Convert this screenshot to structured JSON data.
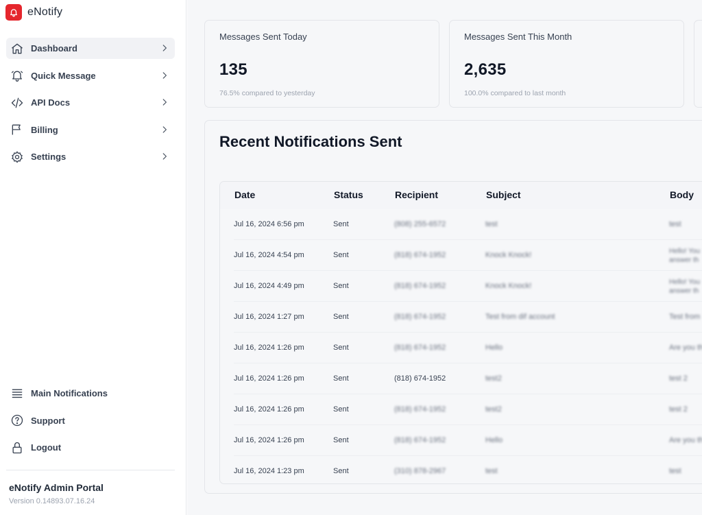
{
  "app": {
    "name": "eNotify"
  },
  "sidebar": {
    "items": [
      {
        "label": "Dashboard",
        "icon": "home-icon",
        "active": true
      },
      {
        "label": "Quick Message",
        "icon": "bell-icon"
      },
      {
        "label": "API Docs",
        "icon": "code-icon"
      },
      {
        "label": "Billing",
        "icon": "flag-icon"
      },
      {
        "label": "Settings",
        "icon": "gear-icon"
      }
    ],
    "bottom_items": [
      {
        "label": "Main Notifications",
        "icon": "list-icon"
      },
      {
        "label": "Support",
        "icon": "help-circle-icon"
      },
      {
        "label": "Logout",
        "icon": "lock-icon"
      }
    ],
    "footer": {
      "portal_name": "eNotify Admin Portal",
      "version": "Version 0.14893.07.16.24"
    }
  },
  "stats": [
    {
      "title": "Messages Sent Today",
      "value": "135",
      "note": "76.5% compared to yesterday"
    },
    {
      "title": "Messages Sent This Month",
      "value": "2,635",
      "note": "100.0% compared to last month"
    }
  ],
  "recent": {
    "title": "Recent Notifications Sent",
    "columns": [
      "Date",
      "Status",
      "Recipient",
      "Subject",
      "Body"
    ],
    "rows": [
      {
        "date": "Jul 16, 2024 6:56 pm",
        "status": "Sent",
        "recipient": "(808) 255-6572",
        "subject": "test",
        "body": [
          "test"
        ]
      },
      {
        "date": "Jul 16, 2024 4:54 pm",
        "status": "Sent",
        "recipient": "(818) 674-1952",
        "subject": "Knock Knock!",
        "body": [
          "Hello! You",
          "answer th"
        ]
      },
      {
        "date": "Jul 16, 2024 4:49 pm",
        "status": "Sent",
        "recipient": "(818) 674-1952",
        "subject": "Knock Knock!",
        "body": [
          "Hello! You",
          "answer th"
        ]
      },
      {
        "date": "Jul 16, 2024 1:27 pm",
        "status": "Sent",
        "recipient": "(818) 674-1952",
        "subject": "Test from dif account",
        "body": [
          "Test from"
        ]
      },
      {
        "date": "Jul 16, 2024 1:26 pm",
        "status": "Sent",
        "recipient": "(818) 674-1952",
        "subject": "Hello",
        "body": [
          "Are you th"
        ]
      },
      {
        "date": "Jul 16, 2024 1:26 pm",
        "status": "Sent",
        "recipient": "(818) 674-1952",
        "subject": "test2",
        "body": [
          "test 2"
        ]
      },
      {
        "date": "Jul 16, 2024 1:26 pm",
        "status": "Sent",
        "recipient": "(818) 674-1952",
        "subject": "test2",
        "body": [
          "test 2"
        ]
      },
      {
        "date": "Jul 16, 2024 1:26 pm",
        "status": "Sent",
        "recipient": "(818) 674-1952",
        "subject": "Hello",
        "body": [
          "Are you th"
        ]
      },
      {
        "date": "Jul 16, 2024 1:23 pm",
        "status": "Sent",
        "recipient": "(310) 878-2967",
        "subject": "test",
        "body": [
          "test"
        ]
      }
    ]
  },
  "colors": {
    "brand": "#e5262d",
    "panel": "#f6f7f9",
    "active_nav": "#f1f2f5"
  }
}
